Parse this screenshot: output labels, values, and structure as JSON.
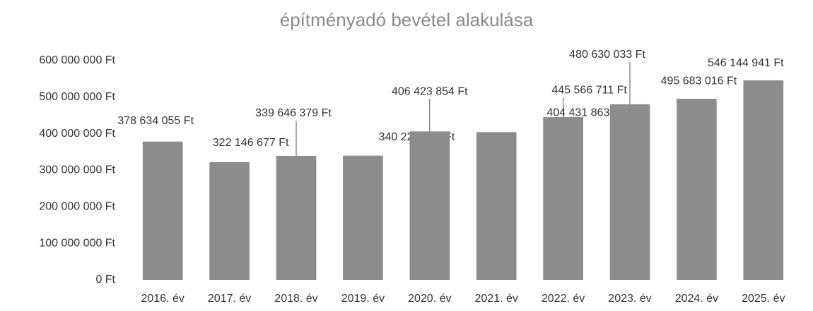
{
  "chart_data": {
    "type": "bar",
    "title": "építményadó bevétel alakulása",
    "categories": [
      "2016. év",
      "2017. év",
      "2018. év",
      "2019. év",
      "2020. év",
      "2021. év",
      "2022. év",
      "2023. év",
      "2024. év",
      "2025. év"
    ],
    "values": [
      378634055,
      322146677,
      339646379,
      340226704,
      406423854,
      404431863,
      445566711,
      480630033,
      495683016,
      546144941
    ],
    "value_labels": [
      "378 634 055 Ft",
      "322 146 677 Ft",
      "339 646 379 Ft",
      "340 226 704 Ft",
      "406 423 854 Ft",
      "404 431 863 Ft",
      "445 566 711 Ft",
      "480 630 033 Ft",
      "495 683 016 Ft",
      "546 144 941 Ft"
    ],
    "color": "#8c8c8c",
    "ylim": [
      0,
      600000000
    ],
    "yticks": [
      {
        "value": 0,
        "label": "0 Ft"
      },
      {
        "value": 100000000,
        "label": "100 000 000 Ft"
      },
      {
        "value": 200000000,
        "label": "200 000 000 Ft"
      },
      {
        "value": 300000000,
        "label": "300 000 000 Ft"
      },
      {
        "value": 400000000,
        "label": "400 000 000 Ft"
      },
      {
        "value": 500000000,
        "label": "500 000 000 Ft"
      },
      {
        "value": 600000000,
        "label": "600 000 000 Ft"
      }
    ],
    "grid": false
  }
}
